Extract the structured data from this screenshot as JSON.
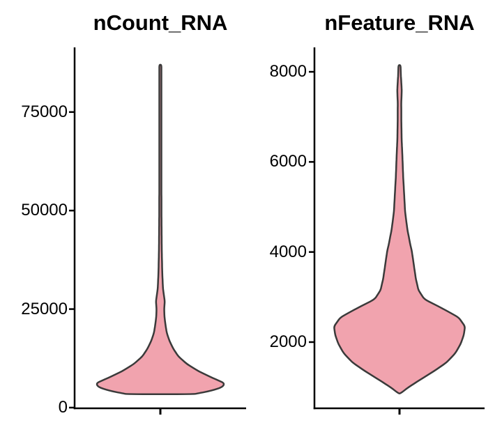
{
  "figure": {
    "background": "#FFFFFF",
    "axis_color": "#000000",
    "text_color": "#000000"
  },
  "chart_data": [
    {
      "type": "violin",
      "title": "nCount_RNA",
      "xlabel": "",
      "ylabel": "",
      "ylim": [
        0,
        91000
      ],
      "grid": false,
      "legend": false,
      "yticks": [
        {
          "value": 0,
          "label": "0"
        },
        {
          "value": 25000,
          "label": "25000"
        },
        {
          "value": 50000,
          "label": "50000"
        },
        {
          "value": 75000,
          "label": "75000"
        }
      ],
      "fill_color": "#F1A3AE",
      "outline_color": "#3A3A3A",
      "summary": {
        "min": 3400,
        "max": 87000,
        "mode": 6200,
        "truncated_flat_bottom": true
      },
      "density_profile": [
        [
          87000,
          0.016
        ],
        [
          78000,
          0.016
        ],
        [
          68000,
          0.016
        ],
        [
          58000,
          0.016
        ],
        [
          48000,
          0.018
        ],
        [
          40000,
          0.022
        ],
        [
          34000,
          0.03
        ],
        [
          30000,
          0.042
        ],
        [
          27000,
          0.068
        ],
        [
          25000,
          0.06
        ],
        [
          23000,
          0.064
        ],
        [
          21000,
          0.08
        ],
        [
          19000,
          0.1
        ],
        [
          17000,
          0.14
        ],
        [
          15000,
          0.2
        ],
        [
          13000,
          0.28
        ],
        [
          11000,
          0.42
        ],
        [
          9200,
          0.6
        ],
        [
          7500,
          0.82
        ],
        [
          6200,
          1.0
        ],
        [
          5200,
          0.97
        ],
        [
          4300,
          0.8
        ],
        [
          3600,
          0.58
        ],
        [
          3400,
          0.52
        ]
      ]
    },
    {
      "type": "violin",
      "title": "nFeature_RNA",
      "xlabel": "",
      "ylabel": "",
      "ylim": [
        500,
        8500
      ],
      "grid": false,
      "legend": false,
      "yticks": [
        {
          "value": 2000,
          "label": "2000"
        },
        {
          "value": 4000,
          "label": "4000"
        },
        {
          "value": 6000,
          "label": "6000"
        },
        {
          "value": 8000,
          "label": "8000"
        }
      ],
      "fill_color": "#F1A3AE",
      "outline_color": "#3A3A3A",
      "summary": {
        "min": 860,
        "max": 8150,
        "mode": 2350,
        "truncated_flat_bottom": false
      },
      "density_profile": [
        [
          8150,
          0.016
        ],
        [
          7950,
          0.02
        ],
        [
          7600,
          0.034
        ],
        [
          7300,
          0.027
        ],
        [
          6900,
          0.028
        ],
        [
          6500,
          0.033
        ],
        [
          6100,
          0.045
        ],
        [
          5700,
          0.055
        ],
        [
          5300,
          0.07
        ],
        [
          4900,
          0.085
        ],
        [
          4500,
          0.12
        ],
        [
          4200,
          0.16
        ],
        [
          4000,
          0.19
        ],
        [
          3700,
          0.22
        ],
        [
          3400,
          0.25
        ],
        [
          3150,
          0.29
        ],
        [
          2950,
          0.38
        ],
        [
          2750,
          0.65
        ],
        [
          2550,
          0.9
        ],
        [
          2350,
          1.0
        ],
        [
          2150,
          0.98
        ],
        [
          1950,
          0.93
        ],
        [
          1750,
          0.85
        ],
        [
          1550,
          0.72
        ],
        [
          1350,
          0.52
        ],
        [
          1150,
          0.3
        ],
        [
          1000,
          0.14
        ],
        [
          900,
          0.05
        ],
        [
          860,
          0.01
        ]
      ]
    }
  ]
}
